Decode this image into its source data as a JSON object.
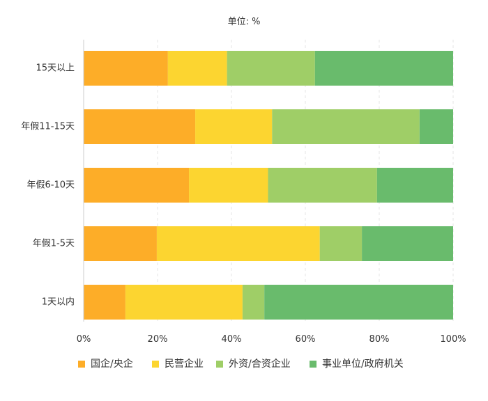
{
  "chart_data": {
    "type": "bar",
    "orientation": "horizontal",
    "stacked": true,
    "unit_label": "单位: %",
    "categories": [
      "15天以上",
      "年假11-15天",
      "年假6-10天",
      "年假1-5天",
      "1天以内"
    ],
    "series": [
      {
        "name": "国企/央企",
        "color": "#FDAD28",
        "values": [
          22.8,
          30.2,
          28.5,
          19.8,
          11.3
        ]
      },
      {
        "name": "民营企业",
        "color": "#FCD530",
        "values": [
          16.0,
          20.8,
          21.4,
          44.1,
          31.7
        ]
      },
      {
        "name": "外资/合资企业",
        "color": "#9FCE67",
        "values": [
          23.8,
          39.9,
          29.5,
          11.4,
          5.9
        ]
      },
      {
        "name": "事业单位/政府机关",
        "color": "#69BB6C",
        "values": [
          37.4,
          9.1,
          20.6,
          24.7,
          51.1
        ]
      }
    ],
    "xlim": [
      0,
      100
    ],
    "xticks": [
      "0%",
      "20%",
      "40%",
      "60%",
      "80%",
      "100%"
    ],
    "grid": true,
    "legend_position": "bottom"
  }
}
